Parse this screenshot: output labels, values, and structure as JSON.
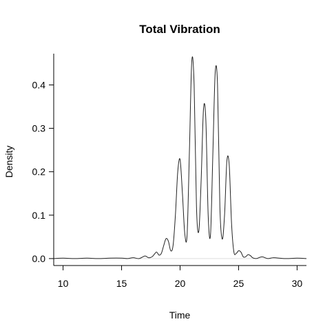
{
  "chart_data": {
    "type": "line",
    "title": "Total Vibration",
    "xlabel": "Time",
    "ylabel": "Density",
    "xlim": [
      9.2,
      30.8
    ],
    "ylim": [
      -0.016,
      0.472
    ],
    "xticks": [
      10,
      15,
      20,
      25,
      30
    ],
    "yticks": [
      0.0,
      0.1,
      0.2,
      0.3,
      0.4
    ],
    "xtick_labels": [
      "10",
      "15",
      "20",
      "25",
      "30"
    ],
    "ytick_labels": [
      "0.0",
      "0.1",
      "0.2",
      "0.3",
      "0.4"
    ],
    "grid": false,
    "legend": "none",
    "line_color": "#222222",
    "baseline_color": "#dddddd",
    "series": [
      {
        "x": [
          9.2,
          10,
          11,
          12,
          13,
          14,
          15,
          15.5,
          16,
          16.5,
          17,
          17.3,
          17.6,
          17.8,
          18,
          18.2,
          18.4,
          18.6,
          18.8,
          19,
          19.2,
          19.4,
          19.6,
          19.8,
          20,
          20.2,
          20.4,
          20.6,
          20.8,
          21,
          21.2,
          21.4,
          21.6,
          21.8,
          22,
          22.2,
          22.4,
          22.6,
          22.8,
          23,
          23.2,
          23.4,
          23.6,
          23.8,
          24,
          24.2,
          24.4,
          24.6,
          24.8,
          25,
          25.2,
          25.4,
          25.6,
          25.8,
          26,
          26.2,
          26.5,
          27,
          27.5,
          28,
          29,
          30,
          30.8
        ],
        "y": [
          0.0,
          0.001,
          0.0,
          0.001,
          0.0,
          0.001,
          0.001,
          0.0,
          0.002,
          0.0,
          0.006,
          0.002,
          0.004,
          0.01,
          0.015,
          0.008,
          0.012,
          0.03,
          0.046,
          0.04,
          0.018,
          0.03,
          0.1,
          0.2,
          0.228,
          0.15,
          0.058,
          0.055,
          0.25,
          0.455,
          0.4,
          0.12,
          0.063,
          0.18,
          0.344,
          0.32,
          0.1,
          0.055,
          0.24,
          0.428,
          0.4,
          0.12,
          0.045,
          0.1,
          0.225,
          0.215,
          0.08,
          0.015,
          0.012,
          0.018,
          0.015,
          0.004,
          0.004,
          0.009,
          0.007,
          0.002,
          0.0,
          0.004,
          0.0,
          0.002,
          0.0,
          0.001,
          0.0
        ]
      }
    ]
  }
}
